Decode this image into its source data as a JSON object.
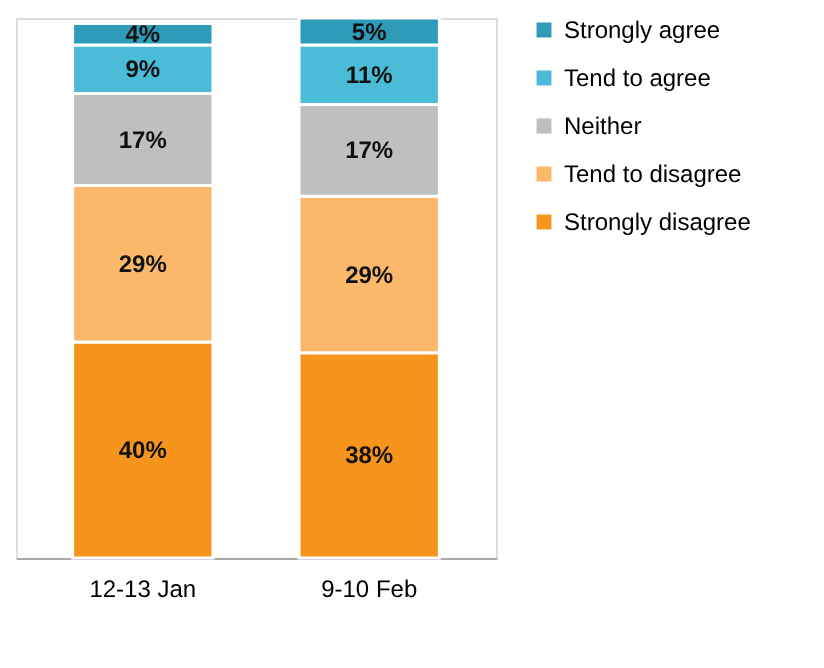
{
  "chart_data": {
    "type": "bar",
    "stacked": true,
    "categories": [
      "12-13 Jan",
      "9-10 Feb"
    ],
    "series": [
      {
        "name": "Strongly disagree",
        "color": "#f7941d",
        "values": [
          40,
          38
        ],
        "value_labels": [
          "40%",
          "38%"
        ]
      },
      {
        "name": "Tend to disagree",
        "color": "#fbb86b",
        "values": [
          29,
          29
        ],
        "value_labels": [
          "29%",
          "29%"
        ]
      },
      {
        "name": "Neither",
        "color": "#bfbfbf",
        "values": [
          17,
          17
        ],
        "value_labels": [
          "17%",
          "17%"
        ]
      },
      {
        "name": "Tend to agree",
        "color": "#4bbcd8",
        "values": [
          9,
          11
        ],
        "value_labels": [
          "9%",
          "11%"
        ]
      },
      {
        "name": "Strongly agree",
        "color": "#2e9cb8",
        "values": [
          4,
          5
        ],
        "value_labels": [
          "4%",
          "5%"
        ]
      }
    ],
    "legend": "right",
    "grid": false
  }
}
